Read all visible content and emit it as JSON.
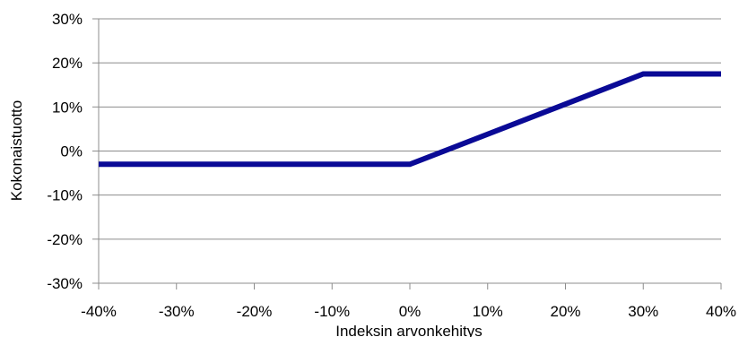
{
  "chart_data": {
    "type": "line",
    "title": "",
    "xlabel": "Indeksin arvonkehitys",
    "ylabel": "Kokonaistuotto",
    "xlim": [
      -40,
      40
    ],
    "ylim": [
      -30,
      30
    ],
    "x_ticks": [
      -40,
      -30,
      -20,
      -10,
      0,
      10,
      20,
      30,
      40
    ],
    "y_ticks": [
      -30,
      -20,
      -10,
      0,
      10,
      20,
      30
    ],
    "x_tick_labels": [
      "-40%",
      "-30%",
      "-20%",
      "-10%",
      "0%",
      "10%",
      "20%",
      "30%",
      "40%"
    ],
    "y_tick_labels": [
      "-30%",
      "-20%",
      "-10%",
      "0%",
      "10%",
      "20%",
      "30%"
    ],
    "grid": "horizontal",
    "legend": "none",
    "series": [
      {
        "color": "#0a0a96",
        "points": [
          {
            "x": -40,
            "y": -3
          },
          {
            "x": 0,
            "y": -3
          },
          {
            "x": 30,
            "y": 17.5
          },
          {
            "x": 40,
            "y": 17.5
          }
        ]
      }
    ]
  }
}
